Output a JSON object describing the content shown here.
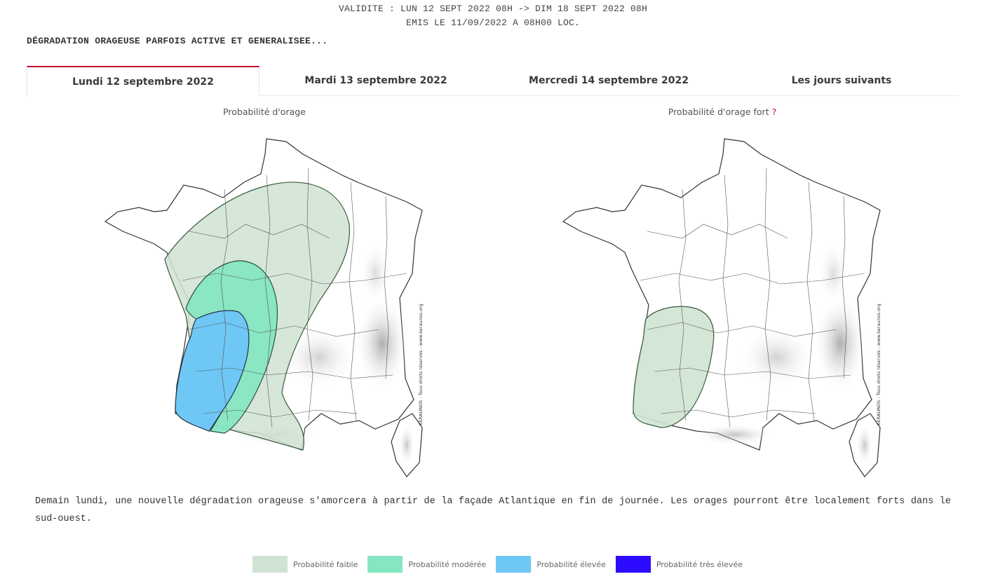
{
  "header": {
    "validity": "VALIDITE : LUN 12 SEPT 2022 08H -> DIM 18 SEPT 2022 08H",
    "issued": "EMIS LE 11/09/2022 A 08H00 LOC.",
    "headline": "DÉGRADATION ORAGEUSE PARFOIS ACTIVE ET GENERALISEE..."
  },
  "tabs": [
    {
      "label": "Lundi 12 septembre 2022",
      "active": true
    },
    {
      "label": "Mardi 13 septembre 2022",
      "active": false
    },
    {
      "label": "Mercredi 14 septembre 2022",
      "active": false
    },
    {
      "label": "Les jours suivants",
      "active": false
    }
  ],
  "maps": {
    "left": {
      "title": "Probabilité d'orage",
      "watermark": "KERAUNOS - Tous droits réservés - www.keraunos.org"
    },
    "right": {
      "title": "Probabilité d'orage fort",
      "help": "?",
      "watermark": "KERAUNOS - Tous droits réservés - www.keraunos.org"
    }
  },
  "description": "Demain lundi, une nouvelle dégradation orageuse s'amorcera à partir de la façade Atlantique en fin de journée. Les orages pourront être localement forts dans le sud-ouest.",
  "legend": [
    {
      "label": "Probabilité faible",
      "color": "#cfe3d2"
    },
    {
      "label": "Probabilité modérée",
      "color": "#86e6c2"
    },
    {
      "label": "Probabilité élevée",
      "color": "#6fc7f5"
    },
    {
      "label": "Probabilité très élevée",
      "color": "#2c0bff"
    }
  ]
}
